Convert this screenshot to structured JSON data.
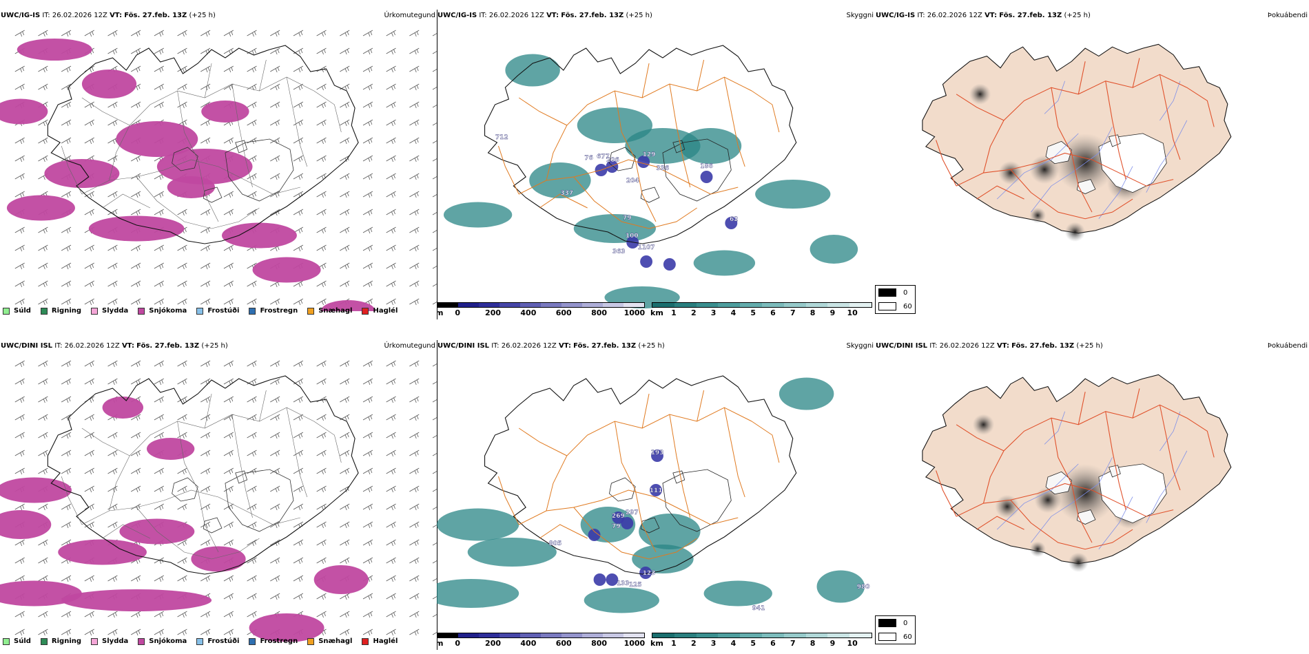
{
  "panels": [
    {
      "id": "igis-precip",
      "model": "UWC/IG-IS",
      "it_prefix": "IT:",
      "issued": "26.02.2026 12Z",
      "vt_prefix": "VT:",
      "valid": "Fös. 27.feb. 13Z",
      "lead": "(+25 h)",
      "title_right": "Úrkomutegund"
    },
    {
      "id": "igis-vis",
      "model": "UWC/IG-IS",
      "it_prefix": "IT:",
      "issued": "26.02.2026 12Z",
      "vt_prefix": "VT:",
      "valid": "Fös. 27.feb. 13Z",
      "lead": "(+25 h)",
      "title_right": "Skyggni",
      "map_labels": [
        "712",
        "76",
        "677",
        "206",
        "129",
        "336",
        "186",
        "204",
        "337",
        "62",
        "79",
        "100",
        "363",
        "1107"
      ]
    },
    {
      "id": "igis-fog",
      "model": "UWC/IG-IS",
      "it_prefix": "IT:",
      "issued": "26.02.2026 12Z",
      "vt_prefix": "VT:",
      "valid": "Fös. 27.feb. 13Z",
      "lead": "(+25 h)",
      "title_right": "Þokuábendi"
    },
    {
      "id": "dini-precip",
      "model": "UWC/DINI ISL",
      "it_prefix": "IT:",
      "issued": "26.02.2026 12Z",
      "vt_prefix": "VT:",
      "valid": "Fös. 27.feb. 13Z",
      "lead": "(+25 h)",
      "title_right": "Úrkomutegund"
    },
    {
      "id": "dini-vis",
      "model": "UWC/DINI ISL",
      "it_prefix": "IT:",
      "issued": "26.02.2026 12Z",
      "vt_prefix": "VT:",
      "valid": "Fös. 27.feb. 13Z",
      "lead": "(+25 h)",
      "title_right": "Skyggni",
      "map_labels": [
        "193",
        "111",
        "269",
        "297",
        "79",
        "805",
        "123",
        "133",
        "125",
        "980",
        "941"
      ]
    },
    {
      "id": "dini-fog",
      "model": "UWC/DINI ISL",
      "it_prefix": "IT:",
      "issued": "26.02.2026 12Z",
      "vt_prefix": "VT:",
      "valid": "Fös. 27.feb. 13Z",
      "lead": "(+25 h)",
      "title_right": "Þokuábendi"
    }
  ],
  "precip_legend": [
    {
      "label": "Súld",
      "color": "#90ee90"
    },
    {
      "label": "Rigning",
      "color": "#2e8b57"
    },
    {
      "label": "Slydda",
      "color": "#f4a6d7"
    },
    {
      "label": "Snjókoma",
      "color": "#c048a0"
    },
    {
      "label": "Frostúði",
      "color": "#87c0e8"
    },
    {
      "label": "Frostregn",
      "color": "#2f6fb0"
    },
    {
      "label": "Snæhagl",
      "color": "#f0a020"
    },
    {
      "label": "Haglél",
      "color": "#e02020"
    }
  ],
  "ceiling_bar": {
    "unit": "m",
    "ticks": [
      "0",
      "200",
      "400",
      "600",
      "800",
      "1000"
    ],
    "colors": [
      "#000000",
      "#20208a",
      "#2e2e9a",
      "#4646a8",
      "#6060b4",
      "#7a7ac0",
      "#9494cc",
      "#aeaed8",
      "#c8c8e4",
      "#e2e2f0"
    ]
  },
  "visibility_bar": {
    "unit": "km",
    "ticks": [
      "1",
      "2",
      "3",
      "4",
      "5",
      "6",
      "7",
      "8",
      "9",
      "10"
    ],
    "colors": [
      "#1a6e6e",
      "#2a7f7f",
      "#3a8f8f",
      "#4e9e9e",
      "#64adad",
      "#7cbcbc",
      "#96caca",
      "#b0d8d8",
      "#cae5e5",
      "#e4f2f2"
    ]
  },
  "fog_legend": [
    {
      "label": "0",
      "color": "#000000"
    },
    {
      "label": "60",
      "color": "#ffffff"
    }
  ],
  "colors": {
    "snow": "#c048a0",
    "vis_teal": "#2a8585",
    "roads": "#e07a20",
    "land_fog": "#f2dccb",
    "road_fog": "#e0502a",
    "rivers": "#7f8fe8",
    "coast": "#000000"
  }
}
